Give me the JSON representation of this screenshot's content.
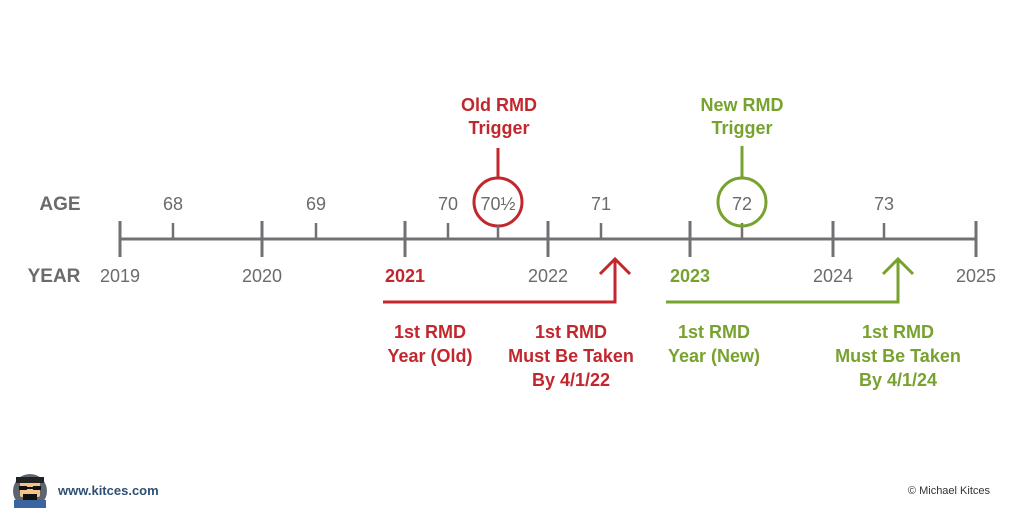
{
  "labels": {
    "age": "AGE",
    "year": "YEAR"
  },
  "ages": [
    "68",
    "69",
    "70",
    "70½",
    "71",
    "72",
    "73"
  ],
  "years": [
    "2019",
    "2020",
    "2021",
    "2022",
    "2023",
    "2024",
    "2025"
  ],
  "old": {
    "trigger_line1": "Old RMD",
    "trigger_line2": "Trigger",
    "first_year_line1": "1st RMD",
    "first_year_line2": "Year (Old)",
    "deadline_line1": "1st RMD",
    "deadline_line2": "Must Be Taken",
    "deadline_line3": "By 4/1/22"
  },
  "new": {
    "trigger_line1": "New RMD",
    "trigger_line2": "Trigger",
    "first_year_line1": "1st RMD",
    "first_year_line2": "Year (New)",
    "deadline_line1": "1st RMD",
    "deadline_line2": "Must Be Taken",
    "deadline_line3": "By 4/1/24"
  },
  "footer": {
    "website": "www.kitces.com",
    "copyright": "© Michael Kitces"
  },
  "colors": {
    "gray": "#6f7175",
    "old": "#c1272d",
    "new": "#78a22f",
    "text": "#6b6b6b"
  }
}
